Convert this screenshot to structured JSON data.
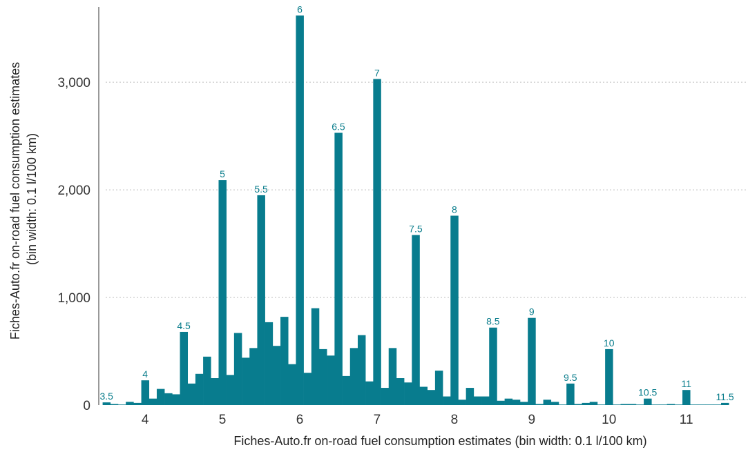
{
  "chart_data": {
    "type": "bar",
    "title": "",
    "xlabel": "Fiches-Auto.fr on-road fuel consumption estimates (bin width: 0.1 l/100 km)",
    "ylabel": [
      "Fiches-Auto.fr on-road fuel consumption estimates",
      "(bin width: 0.1 l/100 km)"
    ],
    "bar_color": "#087c8e",
    "label_color": "#0a7d8c",
    "xlim": [
      3.4,
      11.7
    ],
    "ylim": [
      0,
      3700
    ],
    "x_ticks": [
      4,
      5,
      6,
      7,
      8,
      9,
      10,
      11
    ],
    "x_tick_labels": [
      "4",
      "5",
      "6",
      "7",
      "8",
      "9",
      "10",
      "11"
    ],
    "y_ticks": [
      0,
      1000,
      2000,
      3000
    ],
    "y_tick_labels": [
      "0",
      "1,000",
      "2,000",
      "3,000"
    ],
    "grid": "horizontal dotted",
    "bin_width": 0.1,
    "x": [
      3.5,
      3.6,
      3.7,
      3.8,
      3.9,
      4.0,
      4.1,
      4.2,
      4.3,
      4.4,
      4.5,
      4.6,
      4.7,
      4.8,
      4.9,
      5.0,
      5.1,
      5.2,
      5.3,
      5.4,
      5.5,
      5.6,
      5.7,
      5.8,
      5.9,
      6.0,
      6.1,
      6.2,
      6.3,
      6.4,
      6.5,
      6.6,
      6.7,
      6.8,
      6.9,
      7.0,
      7.1,
      7.2,
      7.3,
      7.4,
      7.5,
      7.6,
      7.7,
      7.8,
      7.9,
      8.0,
      8.1,
      8.2,
      8.3,
      8.4,
      8.5,
      8.6,
      8.7,
      8.8,
      8.9,
      9.0,
      9.1,
      9.2,
      9.3,
      9.4,
      9.5,
      9.6,
      9.7,
      9.8,
      9.9,
      10.0,
      10.1,
      10.2,
      10.3,
      10.4,
      10.5,
      10.6,
      10.7,
      10.8,
      10.9,
      11.0,
      11.1,
      11.2,
      11.3,
      11.4,
      11.5
    ],
    "values": [
      25,
      10,
      5,
      30,
      20,
      230,
      60,
      150,
      110,
      100,
      680,
      200,
      290,
      450,
      250,
      2090,
      280,
      670,
      440,
      530,
      1950,
      770,
      550,
      820,
      380,
      3620,
      300,
      900,
      520,
      460,
      2530,
      270,
      530,
      650,
      220,
      3030,
      160,
      530,
      250,
      210,
      1580,
      170,
      140,
      320,
      80,
      1760,
      50,
      160,
      80,
      80,
      720,
      40,
      60,
      50,
      30,
      810,
      10,
      50,
      30,
      5,
      200,
      10,
      20,
      30,
      5,
      520,
      5,
      10,
      10,
      5,
      60,
      5,
      5,
      10,
      5,
      140,
      5,
      5,
      5,
      5,
      20
    ],
    "bar_labels": [
      {
        "x": 3.5,
        "text": "3.5"
      },
      {
        "x": 4.0,
        "text": "4"
      },
      {
        "x": 4.5,
        "text": "4.5"
      },
      {
        "x": 5.0,
        "text": "5"
      },
      {
        "x": 5.5,
        "text": "5.5"
      },
      {
        "x": 6.0,
        "text": "6"
      },
      {
        "x": 6.5,
        "text": "6.5"
      },
      {
        "x": 7.0,
        "text": "7"
      },
      {
        "x": 7.5,
        "text": "7.5"
      },
      {
        "x": 8.0,
        "text": "8"
      },
      {
        "x": 8.5,
        "text": "8.5"
      },
      {
        "x": 9.0,
        "text": "9"
      },
      {
        "x": 9.5,
        "text": "9.5"
      },
      {
        "x": 10.0,
        "text": "10"
      },
      {
        "x": 10.5,
        "text": "10.5"
      },
      {
        "x": 11.0,
        "text": "11"
      },
      {
        "x": 11.5,
        "text": "11.5"
      }
    ]
  }
}
